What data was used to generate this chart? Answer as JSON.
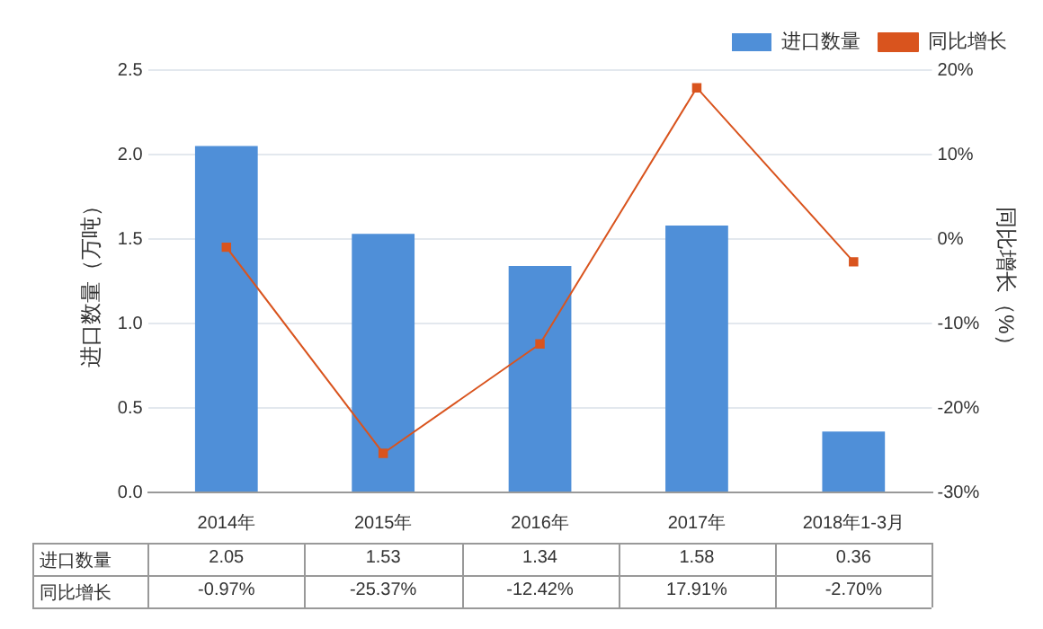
{
  "chart_data": {
    "type": "bar",
    "categories": [
      "2014年",
      "2015年",
      "2016年",
      "2017年",
      "2018年1-3月"
    ],
    "ylabel": "进口数量（万吨）",
    "y2label": "同比增长（%）",
    "series": [
      {
        "name": "进口数量",
        "color": "#4f8fd8",
        "values": [
          2.05,
          1.53,
          1.34,
          1.58,
          0.36
        ],
        "value_labels": [
          "2.05",
          "1.53",
          "1.34",
          "1.58",
          "0.36"
        ]
      },
      {
        "name": "同比增长",
        "type": "line",
        "axis": "y2",
        "color": "#d9541e",
        "values": [
          -0.97,
          -25.37,
          -12.42,
          17.91,
          -2.7
        ],
        "value_labels": [
          "-0.97%",
          "-25.37%",
          "-12.42%",
          "17.91%",
          "-2.70%"
        ]
      }
    ],
    "ylim": [
      0,
      2.5
    ],
    "yticks": [
      {
        "value": 0,
        "label": "0.0"
      },
      {
        "value": 0.5,
        "label": "0.5"
      },
      {
        "value": 1,
        "label": "1.0"
      },
      {
        "value": 1.5,
        "label": "1.5"
      },
      {
        "value": 2,
        "label": "2.0"
      },
      {
        "value": 2.5,
        "label": "2.5"
      }
    ],
    "y2lim": [
      -30,
      20
    ],
    "y2ticks": [
      {
        "value": -30,
        "label": "-30%"
      },
      {
        "value": -20,
        "label": "-20%"
      },
      {
        "value": -10,
        "label": "-10%"
      },
      {
        "value": 0,
        "label": "0%"
      },
      {
        "value": 10,
        "label": "10%"
      },
      {
        "value": 20,
        "label": "20%"
      }
    ],
    "grid": "y",
    "legend": "top right",
    "marker": "square",
    "line_style": "solid"
  }
}
